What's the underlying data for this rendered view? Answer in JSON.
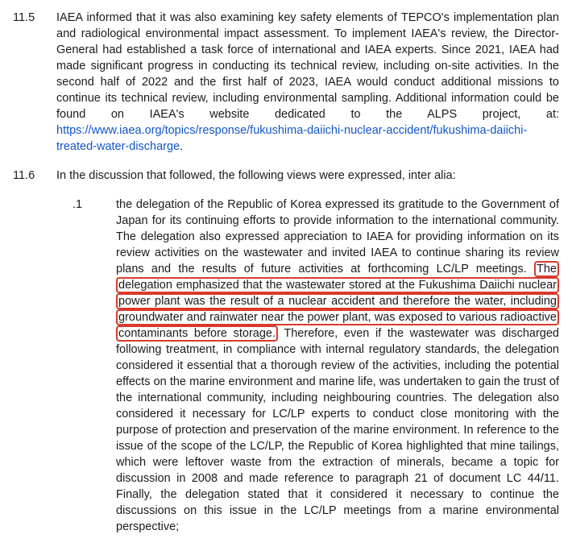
{
  "link_color": "#1155cc",
  "highlight_border_color": "#d93a2b",
  "para_11_5": {
    "number": "11.5",
    "text_before_link": "IAEA informed that it was also examining key safety elements of TEPCO's implementation plan and radiological environmental impact assessment. To implement IAEA's review, the Director-General had established a task force of international and IAEA experts. Since 2021, IAEA had made significant progress in conducting its technical review, including on-site activities. In the second half of 2022 and the first half of 2023, IAEA would conduct additional missions to continue its technical review, including environmental sampling. Additional information could be found on IAEA's website dedicated to the ALPS project, at: ",
    "link_line1": "https://www.iaea.org/topics/response/fukushima-daiichi-nuclear-accident/fukushima-daiichi-",
    "link_line2": "treated-water-discharge",
    "period": "."
  },
  "para_11_6": {
    "number": "11.6",
    "intro": "In the discussion that followed, the following views were expressed, inter alia:"
  },
  "sub_1": {
    "number": ".1",
    "text_before_highlight": "the delegation of the Republic of Korea expressed its gratitude to the Government of Japan for its continuing efforts to provide information to the international community. The delegation also expressed appreciation to IAEA for providing information on its review activities on the wastewater and invited IAEA to continue sharing its review plans and the results of future activities at forthcoming LC/LP meetings. ",
    "highlighted_text": "The delegation emphasized that the wastewater stored at the Fukushima Daiichi nuclear power plant was the result of a nuclear accident and therefore the water, including groundwater and rainwater near the power plant, was exposed to various radioactive contaminants before storage.",
    "text_after_highlight": " Therefore, even if the wastewater was discharged following treatment, in compliance with internal regulatory standards, the delegation considered it essential that a thorough review of the activities, including the potential effects on the marine environment and marine life, was undertaken to gain the trust of the international community, including neighbouring countries. The delegation also considered it necessary for LC/LP experts to conduct close monitoring with the purpose of protection and preservation of the marine environment. In reference to the issue of the scope of the LC/LP, the Republic of Korea highlighted that mine tailings, which were leftover waste from the extraction of minerals, became a topic for discussion in 2008 and made reference to paragraph 21 of document LC 44/11. Finally, the delegation stated that it considered it necessary to continue the discussions on this issue in the LC/LP meetings from a marine environmental perspective;"
  }
}
